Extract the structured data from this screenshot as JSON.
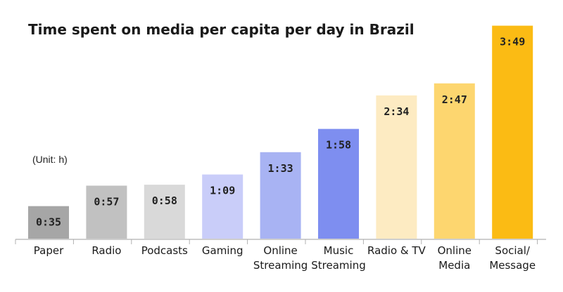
{
  "title": "Time spent on media per capita per day in Brazil",
  "unit_note": "(Unit: h)",
  "chart_data": {
    "type": "bar",
    "title": "Time spent on media per capita per day in Brazil",
    "unit": "(Unit: h)",
    "categories": [
      [
        "Paper"
      ],
      [
        "Radio"
      ],
      [
        "Podcasts"
      ],
      [
        "Gaming"
      ],
      [
        "Online",
        "Streaming"
      ],
      [
        "Music",
        "Streaming"
      ],
      [
        "Radio & TV"
      ],
      [
        "Online",
        "Media"
      ],
      [
        "Social/",
        "Message"
      ]
    ],
    "values": [
      0.583,
      0.95,
      0.967,
      1.15,
      1.55,
      1.967,
      2.567,
      2.783,
      3.817
    ],
    "value_labels": [
      "0:35",
      "0:57",
      "0:58",
      "1:09",
      "1:33",
      "1:58",
      "2:34",
      "2:47",
      "3:49"
    ],
    "colors": [
      "#a6a6a6",
      "#c1c1c1",
      "#d9d9d9",
      "#c9cdf9",
      "#a8b3f3",
      "#7e8ef0",
      "#fdebc2",
      "#fdd66f",
      "#fbbb14"
    ],
    "ylim": [
      0,
      3.9
    ],
    "grid": false,
    "legend": "none"
  }
}
